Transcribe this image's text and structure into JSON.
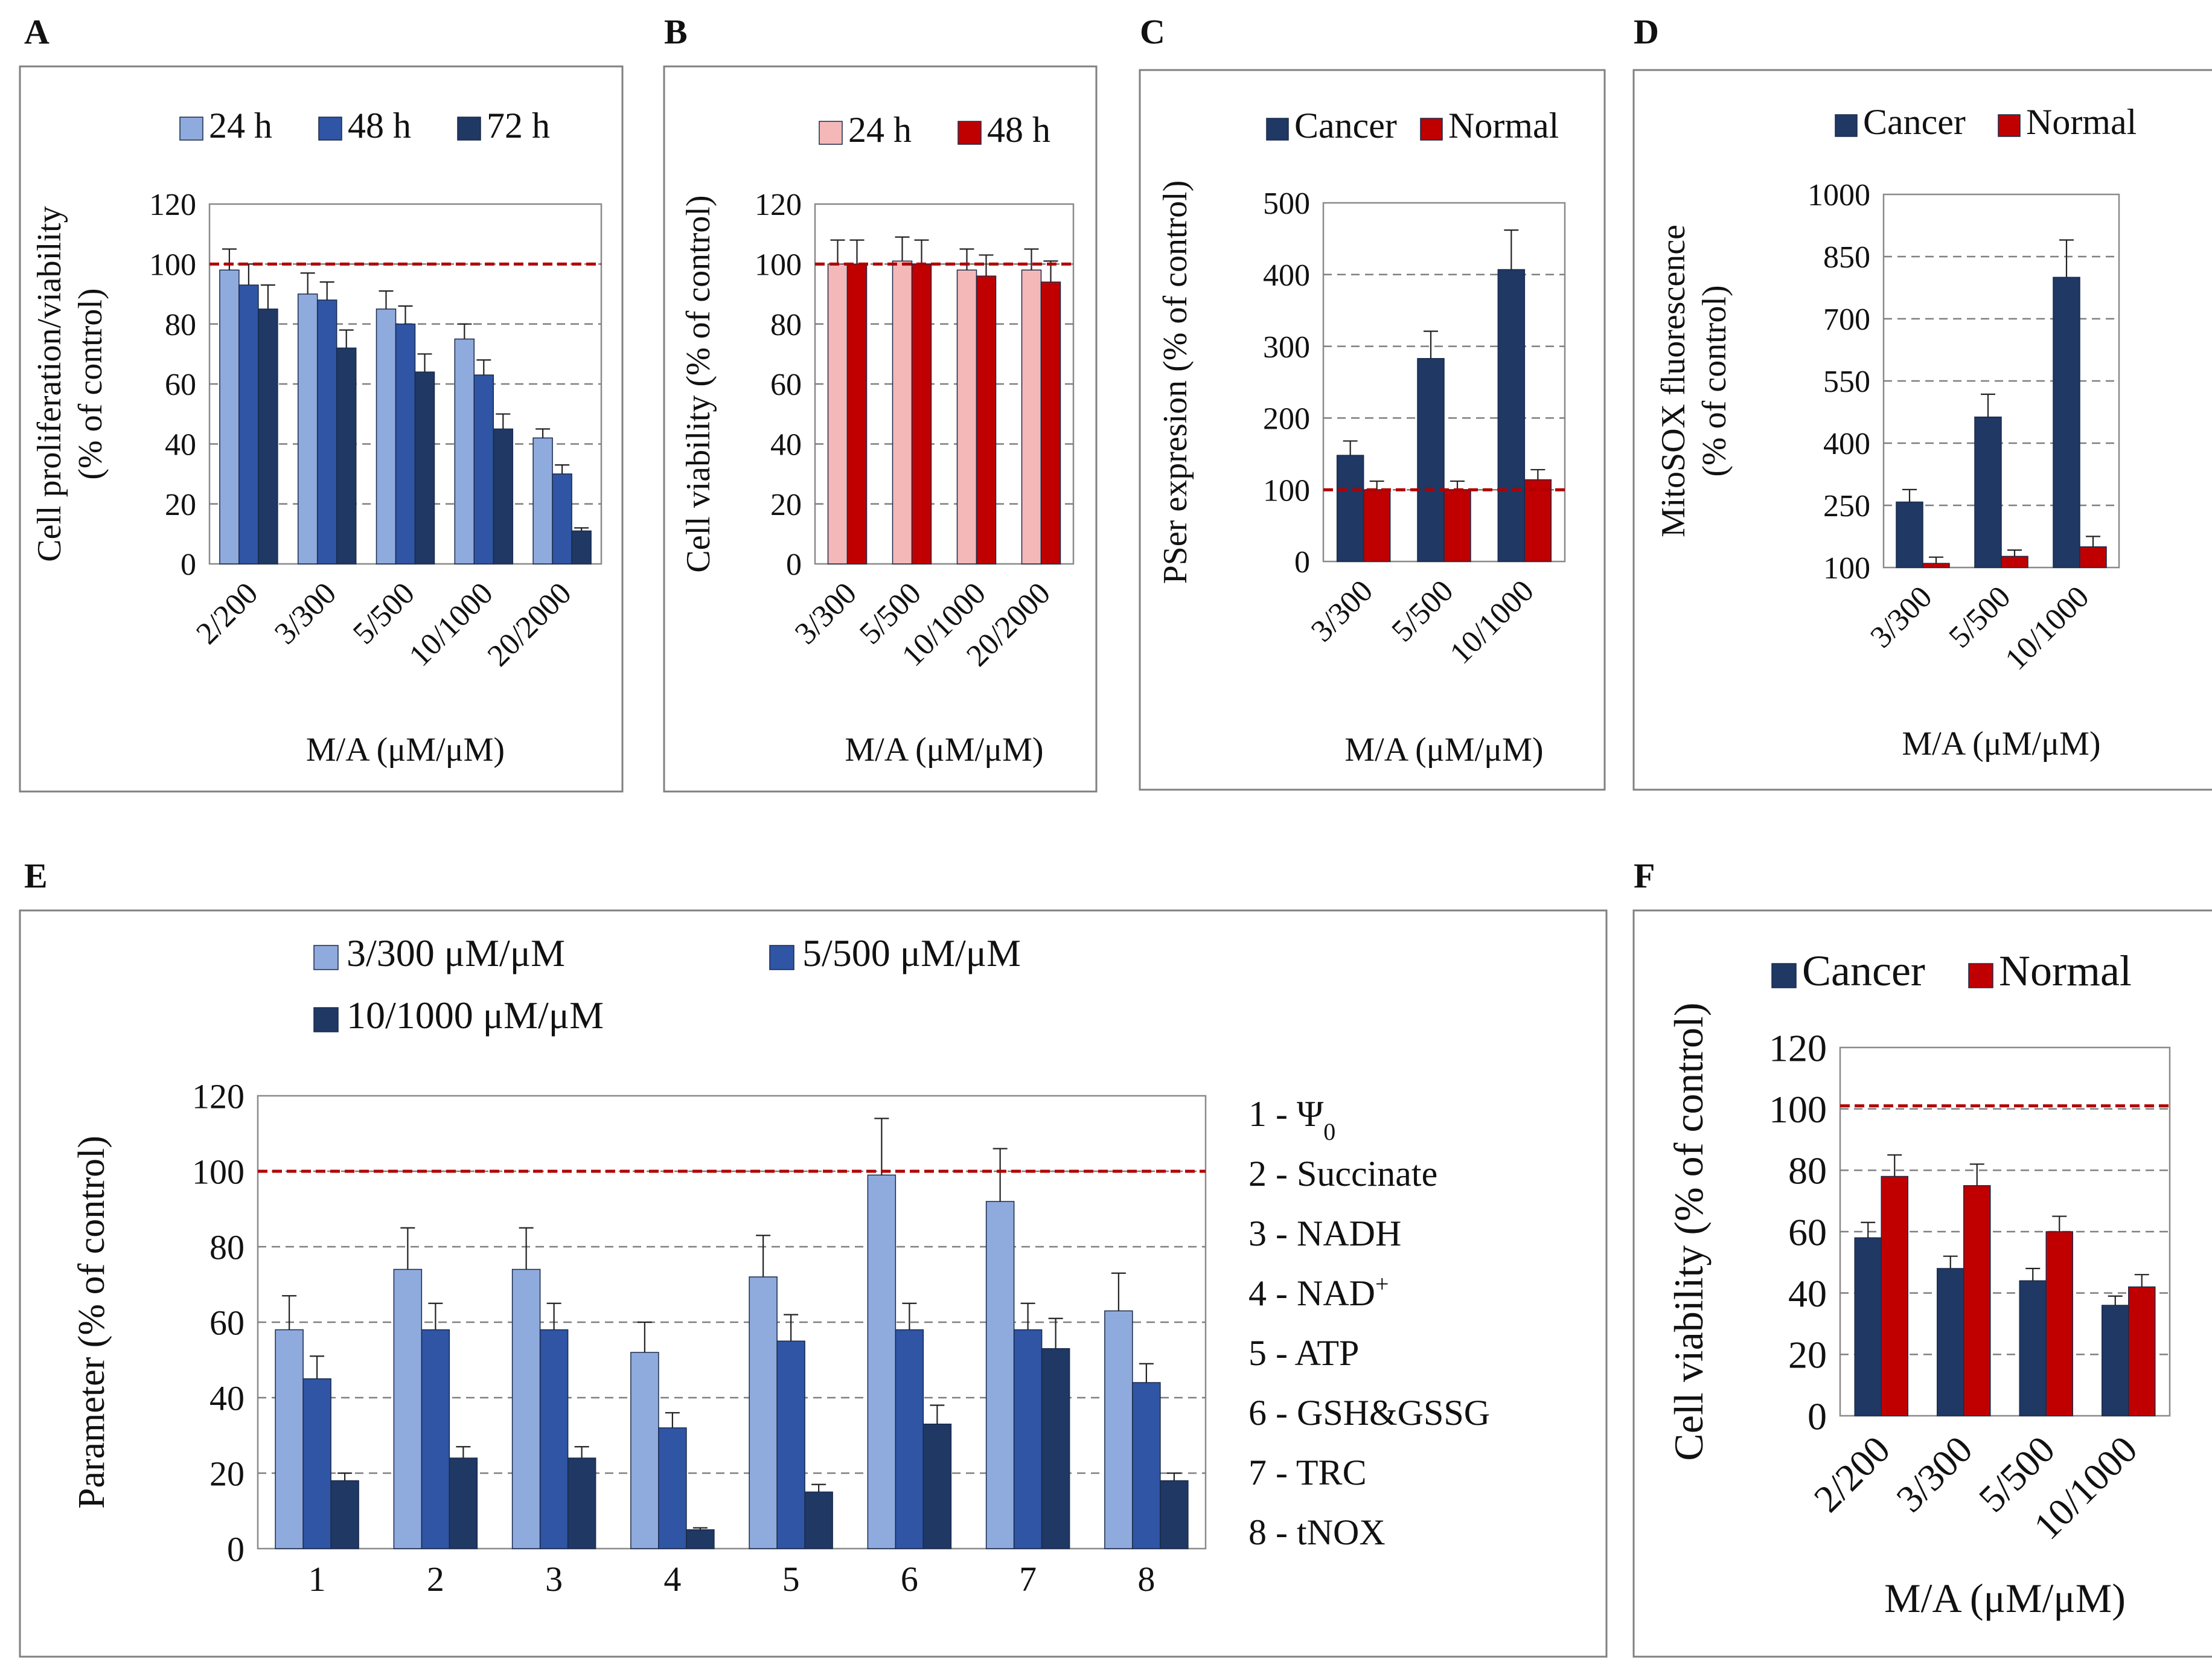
{
  "figure": {
    "colors": {
      "light_blue": "#8FAADC",
      "mid_blue": "#2F55A4",
      "dark_blue": "#1F3864",
      "pink": "#F4B8B8",
      "red": "#C00000",
      "ref_line": "#B00000",
      "grid": "#7F7F7F",
      "frame": "#808080"
    }
  },
  "chart_data": [
    {
      "panel": "A",
      "type": "bar",
      "title": "",
      "xlabel": "M/A (μM/μM)",
      "ylabel": "Cell proliferation/viability|(% of control)",
      "ylim": [
        0,
        120
      ],
      "yticks": [
        "0",
        "20",
        "40",
        "60",
        "80",
        "100",
        "120"
      ],
      "categories": [
        "2/200",
        "3/300",
        "5/500",
        "10/1000",
        "20/2000"
      ],
      "reference_line": 100,
      "legend_position": "top",
      "series": [
        {
          "name": "24 h",
          "color": "#8FAADC",
          "values": [
            98,
            90,
            85,
            75,
            42
          ],
          "errors": [
            7,
            7,
            6,
            5,
            3
          ]
        },
        {
          "name": "48 h",
          "color": "#2F55A4",
          "values": [
            93,
            88,
            80,
            63,
            30
          ],
          "errors": [
            7,
            6,
            6,
            5,
            3
          ]
        },
        {
          "name": "72 h",
          "color": "#1F3864",
          "values": [
            85,
            72,
            64,
            45,
            11
          ],
          "errors": [
            8,
            6,
            6,
            5,
            1
          ]
        }
      ]
    },
    {
      "panel": "B",
      "type": "bar",
      "title": "",
      "xlabel": "M/A (μM/μM)",
      "ylabel": "Cell viability (% of control)",
      "ylim": [
        0,
        120
      ],
      "yticks": [
        "0",
        "20",
        "40",
        "60",
        "80",
        "100",
        "120"
      ],
      "categories": [
        "3/300",
        "5/500",
        "10/1000",
        "20/2000"
      ],
      "reference_line": 100,
      "legend_position": "top",
      "series": [
        {
          "name": "24 h",
          "color": "#F4B8B8",
          "values": [
            100,
            101,
            98,
            98
          ],
          "errors": [
            8,
            8,
            7,
            7
          ]
        },
        {
          "name": "48 h",
          "color": "#C00000",
          "values": [
            100,
            100,
            96,
            94
          ],
          "errors": [
            8,
            8,
            7,
            7
          ]
        }
      ]
    },
    {
      "panel": "C",
      "type": "bar",
      "title": "",
      "xlabel": "M/A (μM/μM)",
      "ylabel": "PSer expresion (% of control)",
      "ylim": [
        0,
        500
      ],
      "yticks": [
        "0",
        "100",
        "200",
        "300",
        "400",
        "500"
      ],
      "categories": [
        "3/300",
        "5/500",
        "10/1000"
      ],
      "reference_line": 100,
      "legend_position": "top",
      "series": [
        {
          "name": "Cancer",
          "color": "#1F3864",
          "values": [
            148,
            283,
            407
          ],
          "errors": [
            20,
            38,
            55
          ]
        },
        {
          "name": "Normal",
          "color": "#C00000",
          "values": [
            100,
            100,
            114
          ],
          "errors": [
            12,
            12,
            14
          ]
        }
      ]
    },
    {
      "panel": "D",
      "type": "bar",
      "title": "",
      "xlabel": "M/A (μM/μM)",
      "ylabel": "MitoSOX fluorescence|(% of control)",
      "ylim": [
        100,
        1000
      ],
      "yticks": [
        "100",
        "250",
        "400",
        "550",
        "700",
        "850",
        "1000"
      ],
      "categories": [
        "3/300",
        "5/500",
        "10/1000"
      ],
      "legend_position": "top",
      "series": [
        {
          "name": "Cancer",
          "color": "#1F3864",
          "values": [
            258,
            463,
            800
          ],
          "errors": [
            30,
            55,
            90
          ]
        },
        {
          "name": "Normal",
          "color": "#C00000",
          "values": [
            110,
            127,
            150
          ],
          "errors": [
            15,
            15,
            25
          ]
        }
      ]
    },
    {
      "panel": "E",
      "type": "bar",
      "title": "",
      "xlabel": "",
      "ylabel": "Parameter (% of control)",
      "ylim": [
        0,
        120
      ],
      "yticks": [
        "0",
        "20",
        "40",
        "60",
        "80",
        "100",
        "120"
      ],
      "categories": [
        "1",
        "2",
        "3",
        "4",
        "5",
        "6",
        "7",
        "8"
      ],
      "reference_line": 100,
      "legend_position": "top",
      "series": [
        {
          "name": "3/300 μM/μM",
          "color": "#8FAADC",
          "values": [
            58,
            74,
            74,
            52,
            72,
            99,
            92,
            63
          ],
          "errors": [
            9,
            11,
            11,
            8,
            11,
            15,
            14,
            10
          ]
        },
        {
          "name": "5/500 μM/μM",
          "color": "#2F55A4",
          "values": [
            45,
            58,
            58,
            32,
            55,
            58,
            58,
            44
          ],
          "errors": [
            6,
            7,
            7,
            4,
            7,
            7,
            7,
            5
          ]
        },
        {
          "name": "10/1000 μM/μM",
          "color": "#1F3864",
          "values": [
            18,
            24,
            24,
            5,
            15,
            33,
            53,
            18
          ],
          "errors": [
            2,
            3,
            3,
            0.5,
            2,
            5,
            8,
            2
          ]
        }
      ],
      "side_legend": [
        {
          "num": "1 - ",
          "label": "Ψ",
          "sub": "0"
        },
        {
          "num": "2 - ",
          "label": "Succinate"
        },
        {
          "num": "3 - ",
          "label": "NADH"
        },
        {
          "num": "4 - ",
          "label": "NAD",
          "sup": "+"
        },
        {
          "num": "5 - ",
          "label": "ATP"
        },
        {
          "num": "6 - ",
          "label": "GSH&GSSG"
        },
        {
          "num": "7 - ",
          "label": "TRC"
        },
        {
          "num": "8 - ",
          "label": "tNOX"
        }
      ]
    },
    {
      "panel": "F",
      "type": "bar",
      "title": "",
      "xlabel": "M/A (μM/μM)",
      "ylabel": "Cell viability (% of control)",
      "ylim": [
        0,
        120
      ],
      "yticks": [
        "0",
        "20",
        "40",
        "60",
        "80",
        "100",
        "120"
      ],
      "categories": [
        "2/200",
        "3/300",
        "5/500",
        "10/1000"
      ],
      "reference_line": 101,
      "legend_position": "top",
      "series": [
        {
          "name": "Cancer",
          "color": "#1F3864",
          "values": [
            58,
            48,
            44,
            36
          ],
          "errors": [
            5,
            4,
            4,
            3
          ]
        },
        {
          "name": "Normal",
          "color": "#C00000",
          "values": [
            78,
            75,
            60,
            42
          ],
          "errors": [
            7,
            7,
            5,
            4
          ]
        }
      ]
    }
  ]
}
